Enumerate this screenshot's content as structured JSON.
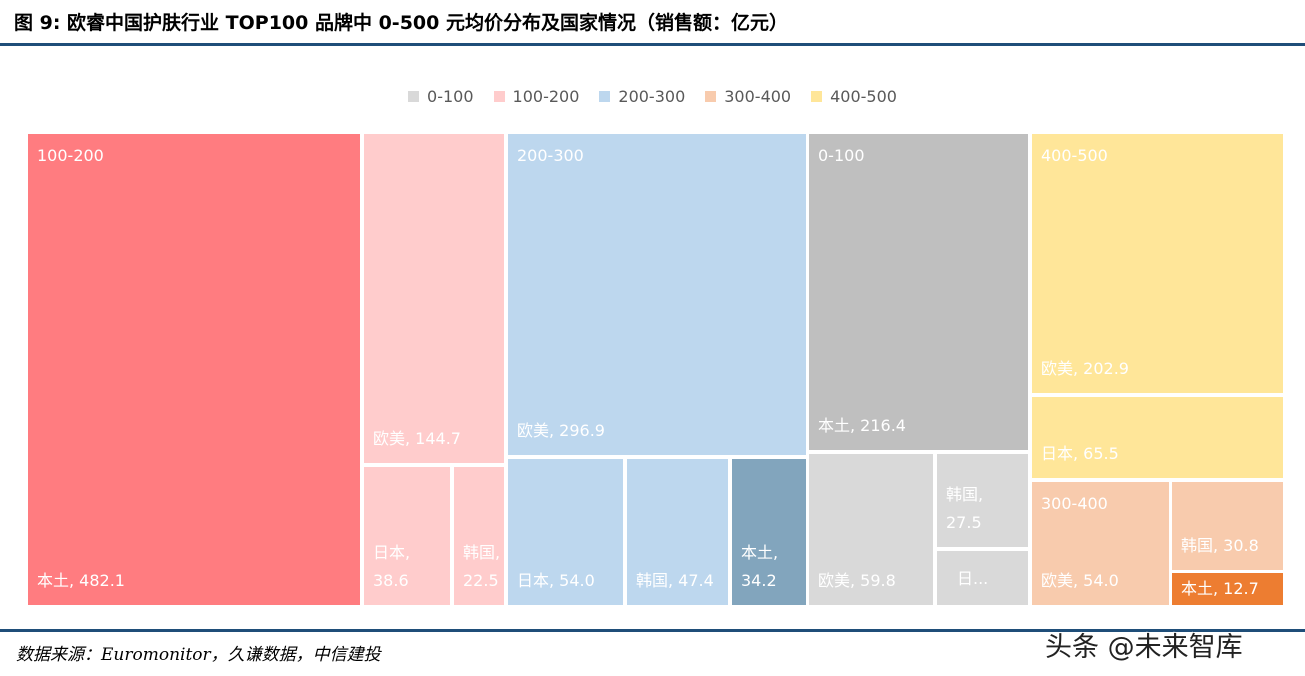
{
  "title": "图 9: 欧睿中国护肤行业 TOP100 品牌中 0-500 元均价分布及国家情况（销售额：亿元）",
  "source": "数据来源：Euromonitor，久谦数据，中信建投",
  "watermark": "头条 @未来智库",
  "chart_data": {
    "type": "treemap",
    "unit": "亿元",
    "legend": [
      {
        "name": "0-100",
        "color": "#d9d9d9"
      },
      {
        "name": "100-200",
        "color": "#ffcccc"
      },
      {
        "name": "200-300",
        "color": "#bdd7ee"
      },
      {
        "name": "300-400",
        "color": "#f8cbad"
      },
      {
        "name": "400-500",
        "color": "#ffe699"
      }
    ],
    "groups": [
      {
        "name": "100-200",
        "items": [
          {
            "name": "本土",
            "value": 482.1,
            "label": "本土, 482.1",
            "color": "#ff7c80"
          },
          {
            "name": "欧美",
            "value": 144.7,
            "label": "欧美, 144.7",
            "color": "#ffcccc"
          },
          {
            "name": "日本",
            "value": 38.6,
            "label": "日本,\n38.6",
            "color": "#ffcccc"
          },
          {
            "name": "韩国",
            "value": 22.5,
            "label": "韩国,\n22.5",
            "color": "#ffcccc"
          }
        ]
      },
      {
        "name": "200-300",
        "items": [
          {
            "name": "欧美",
            "value": 296.9,
            "label": "欧美, 296.9",
            "color": "#bdd7ee"
          },
          {
            "name": "日本",
            "value": 54.0,
            "label": "日本, 54.0",
            "color": "#bdd7ee"
          },
          {
            "name": "韩国",
            "value": 47.4,
            "label": "韩国, 47.4",
            "color": "#bdd7ee"
          },
          {
            "name": "本土",
            "value": 34.2,
            "label": "本土,\n34.2",
            "color": "#82a5bd"
          }
        ]
      },
      {
        "name": "0-100",
        "items": [
          {
            "name": "本土",
            "value": 216.4,
            "label": "本土, 216.4",
            "color": "#bfbfbf"
          },
          {
            "name": "欧美",
            "value": 59.8,
            "label": "欧美, 59.8",
            "color": "#d9d9d9"
          },
          {
            "name": "韩国",
            "value": 27.5,
            "label": "韩国,\n27.5",
            "color": "#d9d9d9"
          },
          {
            "name": "日本",
            "label": "日...",
            "color": "#d9d9d9"
          }
        ]
      },
      {
        "name": "400-500",
        "items": [
          {
            "name": "欧美",
            "value": 202.9,
            "label": "欧美, 202.9",
            "color": "#ffe699"
          },
          {
            "name": "日本",
            "value": 65.5,
            "label": "日本, 65.5",
            "color": "#ffe699"
          }
        ]
      },
      {
        "name": "300-400",
        "items": [
          {
            "name": "欧美",
            "value": 54.0,
            "label": "欧美, 54.0",
            "color": "#f8cbad"
          },
          {
            "name": "韩国",
            "value": 30.8,
            "label": "韩国, 30.8",
            "color": "#f8cbad"
          },
          {
            "name": "本土",
            "value": 12.7,
            "label": "本土, 12.7",
            "color": "#ed7d31"
          }
        ]
      }
    ]
  }
}
